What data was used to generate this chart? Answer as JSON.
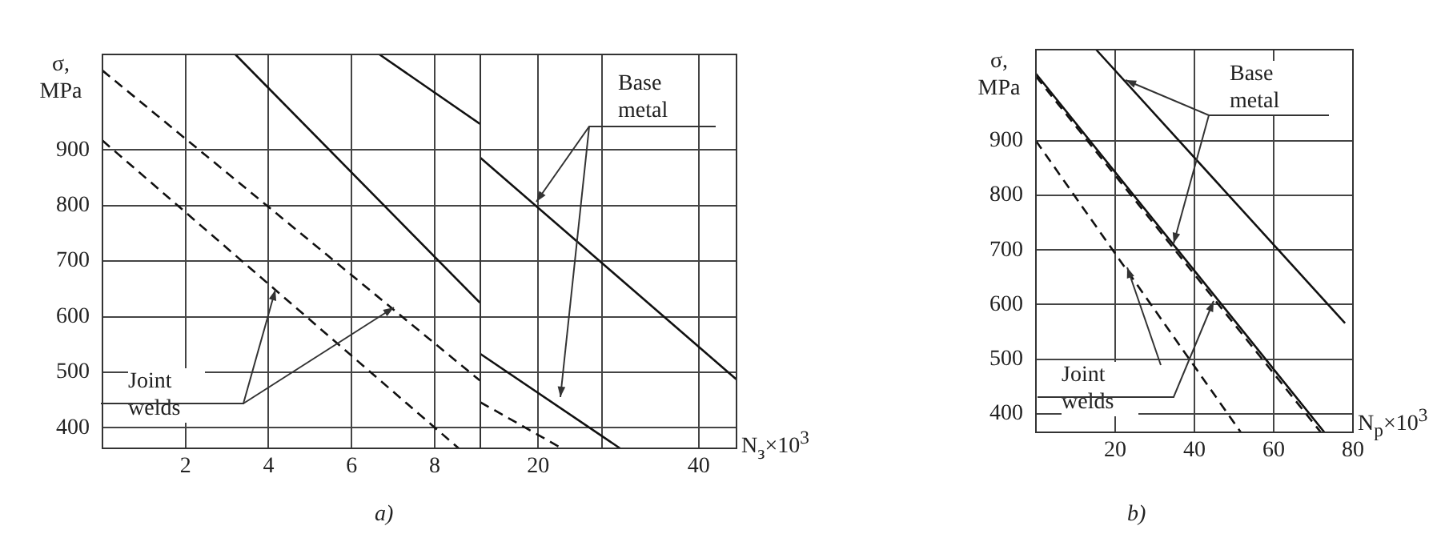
{
  "chart_data": [
    {
      "type": "line",
      "title": "a)",
      "ylabel": "σ, MPa",
      "xlim": [
        0,
        9.1
      ],
      "xticks": [
        2,
        4,
        6,
        8
      ],
      "ylim": [
        363,
        1072
      ],
      "yticks": [
        400,
        500,
        600,
        700,
        800,
        900
      ],
      "grid": true,
      "tick_labels": true,
      "annotations": [
        "Joint welds"
      ],
      "series": [
        {
          "color": "#111111",
          "line_style": "dashed",
          "x": [
            0,
            8.58
          ],
          "values": [
            917,
            363
          ]
        },
        {
          "color": "#111111",
          "line_style": "dashed",
          "x": [
            0,
            9.09
          ],
          "values": [
            1043,
            485
          ]
        },
        {
          "color": "#111111",
          "line_style": "solid",
          "x": [
            3.2,
            9.09
          ],
          "values": [
            1072,
            625
          ]
        },
        {
          "color": "#111111",
          "line_style": "solid",
          "x": [
            6.67,
            9.09
          ],
          "values": [
            1072,
            947
          ]
        }
      ]
    },
    {
      "type": "line",
      "xlabel": "N$_{з}$×10$^{3}$",
      "xlim": [
        12.8,
        44.7
      ],
      "xticks": [
        20,
        {
          "value": 28,
          "label": null
        },
        40
      ],
      "ylim": [
        363,
        1072
      ],
      "yticks": [
        400,
        500,
        600,
        700,
        800,
        900
      ],
      "grid": true,
      "tick_labels": "x",
      "annotations": [
        "Base metal"
      ],
      "series": [
        {
          "color": "#111111",
          "line_style": "dashed",
          "x": [
            12.8,
            22.96
          ],
          "values": [
            446,
            363
          ]
        },
        {
          "color": "#111111",
          "line_style": "solid",
          "x": [
            12.8,
            30.2
          ],
          "values": [
            533,
            363
          ]
        },
        {
          "color": "#111111",
          "line_style": "solid",
          "x": [
            12.8,
            44.7
          ],
          "values": [
            886,
            487
          ]
        }
      ]
    },
    {
      "type": "line",
      "title": "b)",
      "ylabel": "σ, MPa",
      "xlabel": "N$_{p}$×10$^{3}$",
      "xlim": [
        0,
        80
      ],
      "xticks": [
        20,
        40,
        60,
        80
      ],
      "ylim": [
        366,
        1067
      ],
      "yticks": [
        400,
        500,
        600,
        700,
        800,
        900
      ],
      "grid": true,
      "tick_labels": true,
      "annotations": [
        "Base metal",
        "Joint welds"
      ],
      "series": [
        {
          "color": "#111111",
          "line_style": "solid",
          "x": [
            15.2,
            78
          ],
          "values": [
            1067,
            566
          ]
        },
        {
          "color": "#111111",
          "line_style": "solid",
          "x": [
            0,
            72.8
          ],
          "values": [
            1023,
            366
          ]
        },
        {
          "color": "#111111",
          "line_style": "dashed",
          "x": [
            0,
            71.9
          ],
          "values": [
            1018,
            366
          ]
        },
        {
          "color": "#111111",
          "line_style": "dashed",
          "x": [
            0,
            51.7
          ],
          "values": [
            900,
            366
          ]
        }
      ]
    }
  ]
}
